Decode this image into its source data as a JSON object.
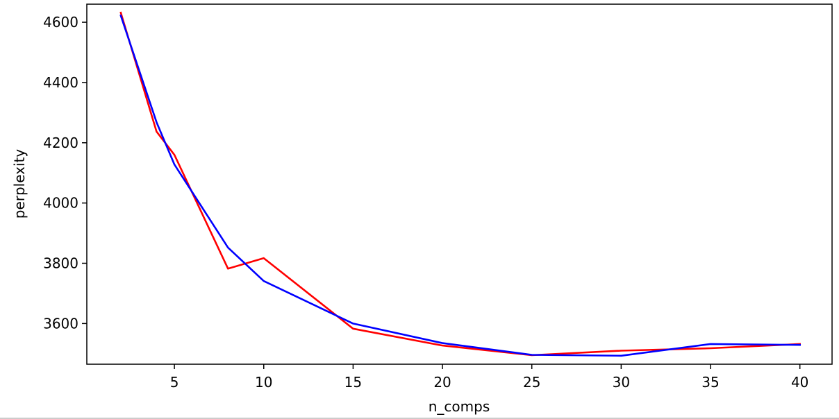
{
  "chart_data": {
    "type": "line",
    "title": "",
    "xlabel": "n_comps",
    "ylabel": "perplexity",
    "xlim": [
      0.1,
      41.8
    ],
    "ylim": [
      3465,
      4660
    ],
    "xticks": [
      5,
      10,
      15,
      20,
      25,
      30,
      35,
      40
    ],
    "yticks": [
      3600,
      3800,
      4000,
      4200,
      4400,
      4600
    ],
    "grid": false,
    "legend": "none",
    "series": [
      {
        "color": "#ff0000",
        "x": [
          2,
          4,
          5,
          8,
          10,
          15,
          20,
          25,
          30,
          35,
          40
        ],
        "y": [
          4632,
          4237,
          4160,
          3782,
          3817,
          3583,
          3527,
          3495,
          3510,
          3518,
          3532
        ]
      },
      {
        "color": "#0000ff",
        "x": [
          2,
          4,
          5,
          8,
          10,
          15,
          20,
          25,
          30,
          35,
          40
        ],
        "y": [
          4622,
          4268,
          4128,
          3852,
          3741,
          3600,
          3535,
          3496,
          3493,
          3532,
          3529
        ]
      }
    ]
  }
}
